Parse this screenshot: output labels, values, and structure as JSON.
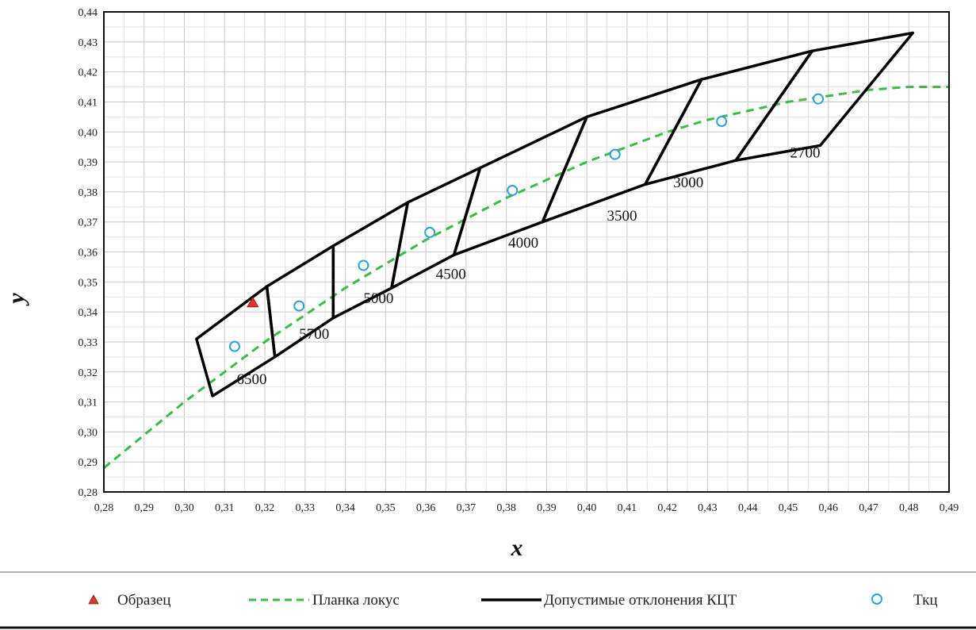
{
  "chart_data": {
    "type": "scatter",
    "xlabel": "x",
    "ylabel": "y",
    "xlim": [
      0.28,
      0.49
    ],
    "ylim": [
      0.28,
      0.44
    ],
    "grid": true,
    "legend_position": "bottom",
    "x_ticks": [
      "0,28",
      "0,29",
      "0,30",
      "0,31",
      "0,32",
      "0,33",
      "0,34",
      "0,35",
      "0,36",
      "0,37",
      "0,38",
      "0,39",
      "0,40",
      "0,41",
      "0,42",
      "0,43",
      "0,44",
      "0,45",
      "0,46",
      "0,47",
      "0,48",
      "0,49"
    ],
    "y_ticks": [
      "0,28",
      "0,29",
      "0,30",
      "0,31",
      "0,32",
      "0,33",
      "0,34",
      "0,35",
      "0,36",
      "0,37",
      "0,38",
      "0,39",
      "0,40",
      "0,41",
      "0,42",
      "0,43",
      "0,44"
    ],
    "colors": {
      "sample": "#e03030",
      "locus": "#3dba4a",
      "tolerance": "#000000",
      "tkc": "#2aa3d6"
    },
    "series": [
      {
        "name": "Образец",
        "kind": "triangle-marker",
        "points": [
          [
            0.317,
            0.343
          ]
        ]
      },
      {
        "name": "Планка локус",
        "kind": "dashed-line",
        "points": [
          [
            0.28,
            0.288
          ],
          [
            0.29,
            0.299
          ],
          [
            0.3,
            0.31
          ],
          [
            0.31,
            0.32
          ],
          [
            0.32,
            0.33
          ],
          [
            0.33,
            0.339
          ],
          [
            0.34,
            0.348
          ],
          [
            0.35,
            0.356
          ],
          [
            0.36,
            0.364
          ],
          [
            0.37,
            0.371
          ],
          [
            0.38,
            0.378
          ],
          [
            0.39,
            0.384
          ],
          [
            0.4,
            0.39
          ],
          [
            0.41,
            0.395
          ],
          [
            0.42,
            0.4
          ],
          [
            0.43,
            0.404
          ],
          [
            0.44,
            0.407
          ],
          [
            0.45,
            0.41
          ],
          [
            0.46,
            0.412
          ],
          [
            0.47,
            0.414
          ],
          [
            0.48,
            0.415
          ],
          [
            0.49,
            0.415
          ]
        ]
      },
      {
        "name": "Допустимые отклонения КЦТ",
        "kind": "quadrangles",
        "quads": [
          {
            "label": "6500",
            "label_pos": [
              0.313,
              0.316
            ],
            "points": [
              [
                0.303,
                0.331
              ],
              [
                0.3205,
                0.3485
              ],
              [
                0.3225,
                0.325
              ],
              [
                0.307,
                0.312
              ]
            ]
          },
          {
            "label": "5700",
            "label_pos": [
              0.3285,
              0.331
            ],
            "points": [
              [
                0.3205,
                0.3485
              ],
              [
                0.337,
                0.362
              ],
              [
                0.337,
                0.338
              ],
              [
                0.3225,
                0.325
              ]
            ]
          },
          {
            "label": "5000",
            "label_pos": [
              0.3445,
              0.343
            ],
            "points": [
              [
                0.337,
                0.362
              ],
              [
                0.3555,
                0.3765
              ],
              [
                0.3515,
                0.348
              ],
              [
                0.337,
                0.338
              ]
            ]
          },
          {
            "label": "4500",
            "label_pos": [
              0.3625,
              0.351
            ],
            "points": [
              [
                0.3555,
                0.3765
              ],
              [
                0.3735,
                0.388
              ],
              [
                0.367,
                0.359
              ],
              [
                0.3515,
                0.348
              ]
            ]
          },
          {
            "label": "4000",
            "label_pos": [
              0.3805,
              0.3615
            ],
            "points": [
              [
                0.3735,
                0.388
              ],
              [
                0.4,
                0.405
              ],
              [
                0.389,
                0.37
              ],
              [
                0.367,
                0.359
              ]
            ]
          },
          {
            "label": "3500",
            "label_pos": [
              0.405,
              0.3705
            ],
            "points": [
              [
                0.4,
                0.405
              ],
              [
                0.4285,
                0.4175
              ],
              [
                0.4145,
                0.3825
              ],
              [
                0.389,
                0.37
              ]
            ]
          },
          {
            "label": "3000",
            "label_pos": [
              0.4215,
              0.3815
            ],
            "points": [
              [
                0.4285,
                0.4175
              ],
              [
                0.456,
                0.427
              ],
              [
                0.437,
                0.3905
              ],
              [
                0.4145,
                0.3825
              ]
            ]
          },
          {
            "label": "2700",
            "label_pos": [
              0.4505,
              0.3915
            ],
            "points": [
              [
                0.456,
                0.427
              ],
              [
                0.481,
                0.433
              ],
              [
                0.458,
                0.3955
              ],
              [
                0.437,
                0.3905
              ]
            ]
          }
        ]
      },
      {
        "name": "Ткц",
        "kind": "circle-marker",
        "points": [
          [
            0.3125,
            0.3285
          ],
          [
            0.3285,
            0.342
          ],
          [
            0.3445,
            0.3555
          ],
          [
            0.361,
            0.3665
          ],
          [
            0.3815,
            0.3805
          ],
          [
            0.407,
            0.3925
          ],
          [
            0.4335,
            0.4035
          ],
          [
            0.4575,
            0.411
          ]
        ]
      }
    ]
  }
}
